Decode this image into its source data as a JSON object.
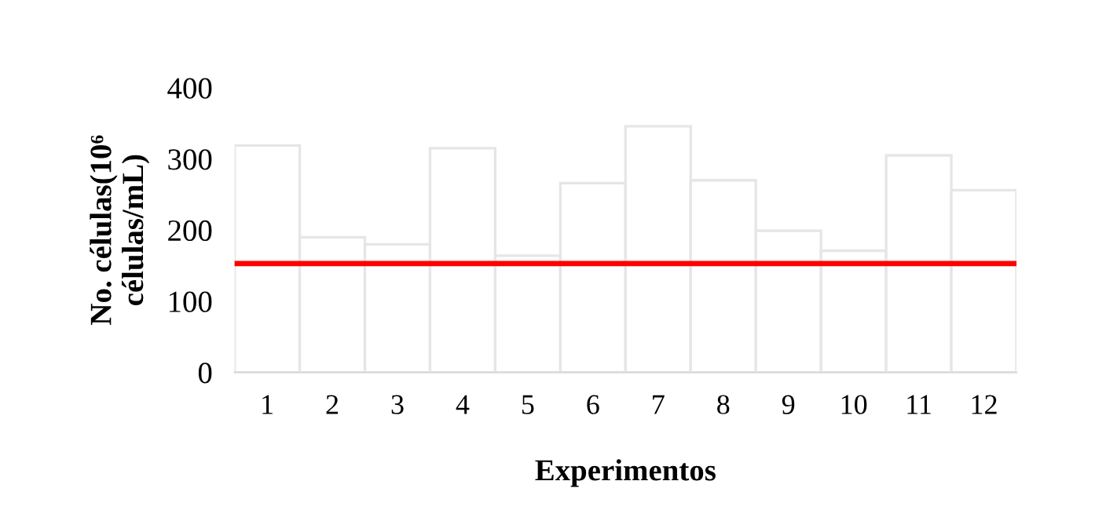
{
  "chart_data": {
    "type": "bar",
    "xlabel": "Experimentos",
    "ylabel": "No. células(10⁶\ncélulas/mL)",
    "categories": [
      "1",
      "2",
      "3",
      "4",
      "5",
      "6",
      "7",
      "8",
      "9",
      "10",
      "11",
      "12"
    ],
    "values": [
      319,
      190,
      180,
      315,
      164,
      266,
      346,
      270,
      199,
      171,
      305,
      256
    ],
    "color": "#ffffff",
    "ylim": [
      0,
      400
    ],
    "yticks": [
      0,
      100,
      200,
      300,
      400
    ],
    "grid": false,
    "ref_lines": [
      {
        "axis": "y",
        "value": 153,
        "color": "#ff0000",
        "line_style": "solid"
      }
    ]
  }
}
